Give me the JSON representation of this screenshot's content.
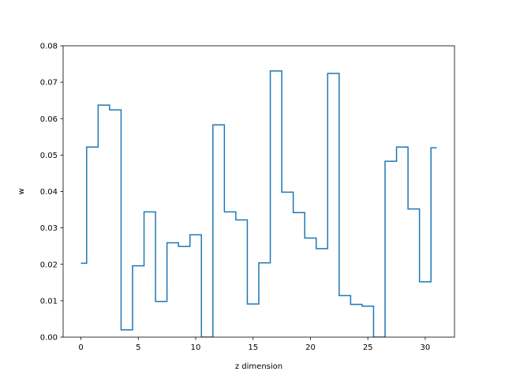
{
  "chart_data": {
    "type": "line",
    "drawstyle": "steps-mid",
    "xlabel": "z dimension",
    "ylabel": "w",
    "xlim": [
      -1.55,
      32.55
    ],
    "ylim": [
      0.0,
      0.08
    ],
    "x_ticks": [
      0,
      5,
      10,
      15,
      20,
      25,
      30
    ],
    "y_ticks": [
      0.0,
      0.01,
      0.02,
      0.03,
      0.04,
      0.05,
      0.06,
      0.07,
      0.08
    ],
    "x_tick_labels": [
      "0",
      "5",
      "10",
      "15",
      "20",
      "25",
      "30"
    ],
    "y_tick_labels": [
      "0.00",
      "0.01",
      "0.02",
      "0.03",
      "0.04",
      "0.05",
      "0.06",
      "0.07",
      "0.08"
    ],
    "grid": false,
    "line_color": "#1f77b4",
    "x": [
      0,
      1,
      2,
      3,
      4,
      5,
      6,
      7,
      8,
      9,
      10,
      11,
      12,
      13,
      14,
      15,
      16,
      17,
      18,
      19,
      20,
      21,
      22,
      23,
      24,
      25,
      26,
      27,
      28,
      29,
      30,
      31
    ],
    "y": [
      0.0203,
      0.0522,
      0.0637,
      0.0624,
      0.002,
      0.0196,
      0.0344,
      0.0098,
      0.0259,
      0.0249,
      0.0281,
      0.0,
      0.0583,
      0.0344,
      0.0322,
      0.0091,
      0.0204,
      0.0731,
      0.0398,
      0.0342,
      0.0272,
      0.0243,
      0.0724,
      0.0114,
      0.009,
      0.0085,
      0.0,
      0.0483,
      0.0522,
      0.0352,
      0.0152,
      0.052
    ]
  }
}
